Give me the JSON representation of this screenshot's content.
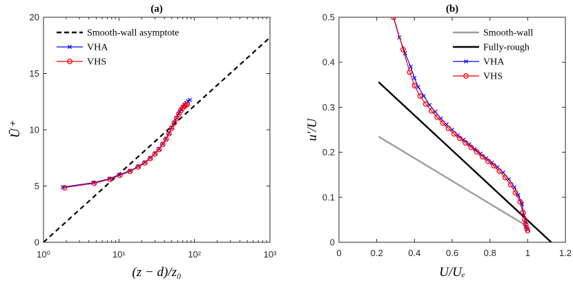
{
  "chart_data": [
    {
      "type": "line",
      "title": "(a)",
      "xlabel": "(z − d)/z₀",
      "ylabel": "Ū⁺",
      "x_scale": "log",
      "xlim": [
        1,
        1000
      ],
      "ylim": [
        0,
        20
      ],
      "x_ticks": [
        "10⁰",
        "10¹",
        "10²",
        "10³"
      ],
      "y_ticks": [
        "0",
        "5",
        "10",
        "15",
        "20"
      ],
      "grid": false,
      "legend_position": "top-left",
      "series": [
        {
          "name": "Smooth-wall asymptote",
          "color": "#000000",
          "style": "dashed",
          "marker": "none",
          "x": [
            1,
            1000
          ],
          "y": [
            0,
            18.2
          ]
        },
        {
          "name": "VHA",
          "color": "#0000ff",
          "style": "solid",
          "marker": "x",
          "x": [
            1.8,
            4.6,
            7.5,
            10,
            14,
            18,
            22,
            26,
            30,
            34,
            38,
            42,
            46,
            50,
            54,
            58,
            62,
            66,
            70,
            74,
            78,
            82,
            87
          ],
          "y": [
            4.9,
            5.3,
            5.65,
            6.0,
            6.35,
            6.75,
            7.1,
            7.5,
            7.9,
            8.3,
            8.75,
            9.2,
            9.7,
            10.2,
            10.65,
            11.05,
            11.45,
            11.8,
            12.05,
            12.25,
            12.4,
            12.55,
            12.65
          ]
        },
        {
          "name": "VHS",
          "color": "#ff0000",
          "style": "solid",
          "marker": "o",
          "x": [
            1.9,
            4.7,
            7.6,
            10.3,
            14,
            18,
            22,
            26,
            30,
            34,
            38,
            42,
            46,
            50,
            54,
            58,
            62,
            66,
            70,
            74,
            77,
            80
          ],
          "y": [
            4.85,
            5.25,
            5.6,
            5.95,
            6.3,
            6.7,
            7.05,
            7.45,
            7.85,
            8.25,
            8.7,
            9.15,
            9.65,
            10.15,
            10.6,
            11.0,
            11.4,
            11.7,
            11.95,
            12.1,
            12.2,
            12.25
          ]
        }
      ]
    },
    {
      "type": "line",
      "title": "(b)",
      "xlabel": "U/Uₑ",
      "ylabel": "u′/U",
      "xlim": [
        0,
        1.2
      ],
      "ylim": [
        0,
        0.5
      ],
      "x_ticks": [
        "0",
        "0.2",
        "0.4",
        "0.6",
        "0.8",
        "1",
        "1.2"
      ],
      "y_ticks": [
        "0",
        "0.1",
        "0.2",
        "0.3",
        "0.4",
        "0.5"
      ],
      "grid": false,
      "legend_position": "top-right",
      "series": [
        {
          "name": "Smooth-wall",
          "color": "#9e9e9e",
          "style": "solid",
          "marker": "none",
          "x": [
            0.21,
            1.0
          ],
          "y": [
            0.235,
            0.035
          ]
        },
        {
          "name": "Fully-rough",
          "color": "#000000",
          "style": "solid",
          "marker": "none",
          "x": [
            0.21,
            1.125
          ],
          "y": [
            0.356,
            0.0
          ]
        },
        {
          "name": "VHA",
          "color": "#0000ff",
          "style": "solid",
          "marker": "x",
          "x": [
            0.285,
            0.32,
            0.35,
            0.38,
            0.4,
            0.42,
            0.45,
            0.48,
            0.51,
            0.54,
            0.57,
            0.6,
            0.63,
            0.66,
            0.69,
            0.72,
            0.75,
            0.78,
            0.81,
            0.84,
            0.87,
            0.9,
            0.93,
            0.95,
            0.97,
            0.98,
            0.99,
            0.993,
            1.0
          ],
          "y": [
            0.505,
            0.455,
            0.42,
            0.39,
            0.365,
            0.345,
            0.325,
            0.305,
            0.29,
            0.275,
            0.262,
            0.25,
            0.238,
            0.228,
            0.218,
            0.207,
            0.197,
            0.187,
            0.177,
            0.167,
            0.155,
            0.14,
            0.122,
            0.105,
            0.085,
            0.06,
            0.045,
            0.035,
            0.028
          ]
        },
        {
          "name": "VHS",
          "color": "#ff0000",
          "style": "solid",
          "marker": "o",
          "x": [
            0.29,
            0.34,
            0.375,
            0.4,
            0.43,
            0.46,
            0.49,
            0.52,
            0.55,
            0.58,
            0.61,
            0.64,
            0.67,
            0.7,
            0.73,
            0.76,
            0.79,
            0.82,
            0.85,
            0.88,
            0.91,
            0.935,
            0.96,
            0.975,
            0.985,
            0.99,
            0.995,
            1.0
          ],
          "y": [
            0.5,
            0.428,
            0.378,
            0.348,
            0.325,
            0.307,
            0.292,
            0.278,
            0.265,
            0.253,
            0.241,
            0.231,
            0.221,
            0.211,
            0.201,
            0.19,
            0.18,
            0.17,
            0.158,
            0.144,
            0.128,
            0.11,
            0.09,
            0.066,
            0.05,
            0.04,
            0.032,
            0.026
          ]
        }
      ]
    }
  ]
}
